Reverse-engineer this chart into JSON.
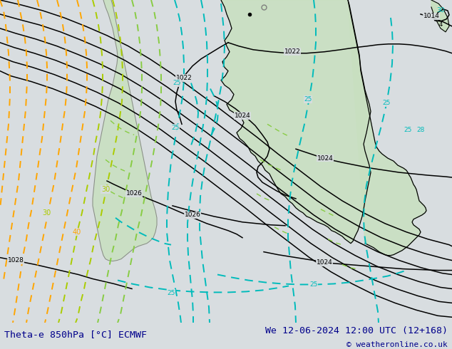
{
  "title_left": "Theta-e 850hPa [°C] ECMWF",
  "title_right": "We 12-06-2024 12:00 UTC (12+168)",
  "copyright": "© weatheronline.co.uk",
  "bg_color": "#d8dde0",
  "land_color": "#c8e0c0",
  "land_outline": "#888888",
  "sea_color": "#d8dde0",
  "bar_color": "#e8e8e8",
  "title_color": "#00008B",
  "fig_w": 6.34,
  "fig_h": 4.9,
  "dpi": 100,
  "black_lw": 1.1,
  "cyan_color": "#00BBBB",
  "orange_color": "#FFA500",
  "yellow_green_color": "#99CC00",
  "cyan_lw": 1.4,
  "orange_lw": 1.4
}
